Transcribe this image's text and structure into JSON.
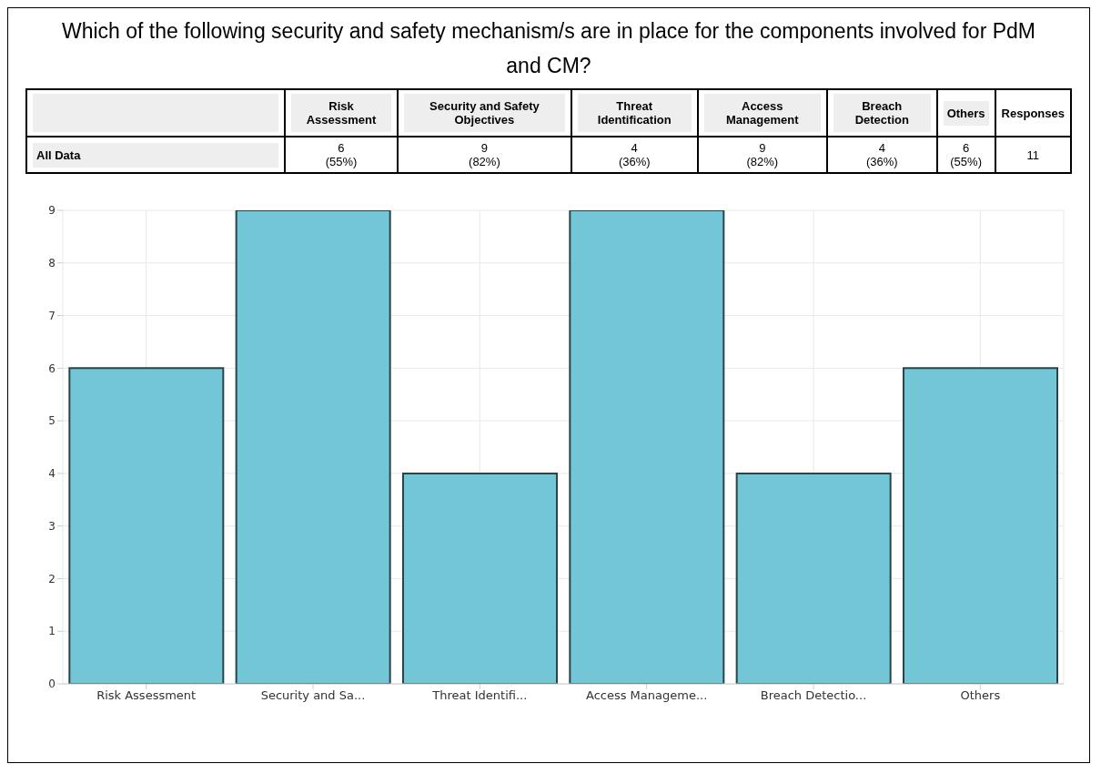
{
  "chart_data": {
    "type": "bar",
    "title": "Which of the following security and safety mechanism/s are in place for the components involved for PdM and CM?",
    "categories": [
      "Risk Assessment",
      "Security and Sa...",
      "Threat Identifi...",
      "Access Manageme...",
      "Breach Detectio...",
      "Others"
    ],
    "values": [
      6,
      9,
      4,
      9,
      4,
      6
    ],
    "annotations": [
      "All Data",
      "Risk Assessment",
      "Security and Safety Objectives",
      "Threat Identification",
      "Access Management",
      "Breach Detection",
      "Others",
      "Responses",
      "6\n(55%)",
      "9\n(82%)",
      "4\n(36%)",
      "9\n(82%)",
      "4\n(36%)",
      "6\n(55%)",
      "11"
    ],
    "color": "#72c6d6",
    "ylim": [
      0,
      9
    ],
    "yticks": [
      0,
      1,
      2,
      3,
      4,
      5,
      6,
      7,
      8,
      9
    ],
    "grid": true
  }
}
